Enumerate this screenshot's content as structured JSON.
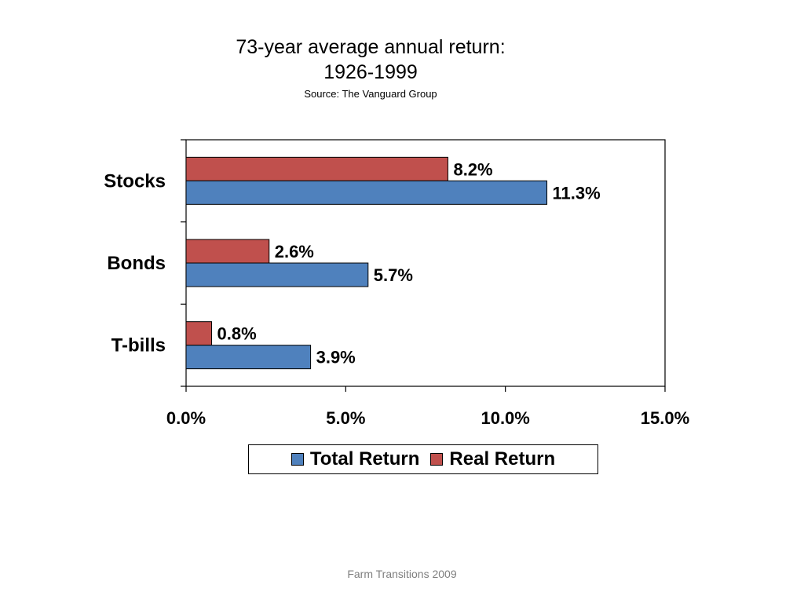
{
  "footer": "Farm Transitions 2009",
  "colors": {
    "total": "#4F81BD",
    "real": "#C0504D"
  },
  "chart_data": {
    "type": "bar",
    "orientation": "horizontal",
    "title": "73-year average annual return:",
    "title_line2": "1926-1999",
    "subtitle": "Source:  The Vanguard Group",
    "categories": [
      "Stocks",
      "Bonds",
      "T-bills"
    ],
    "series": [
      {
        "name": "Total Return",
        "values": [
          11.3,
          5.7,
          3.9
        ],
        "labels": [
          "11.3%",
          "5.7%",
          "3.9%"
        ]
      },
      {
        "name": "Real Return",
        "values": [
          8.2,
          2.6,
          0.8
        ],
        "labels": [
          "8.2%",
          "2.6%",
          "0.8%"
        ]
      }
    ],
    "xlim": [
      0,
      15
    ],
    "x_ticks": [
      0,
      5,
      10,
      15
    ],
    "x_tick_labels": [
      "0.0%",
      "5.0%",
      "10.0%",
      "15.0%"
    ],
    "grid": false,
    "legend_position": "bottom"
  }
}
